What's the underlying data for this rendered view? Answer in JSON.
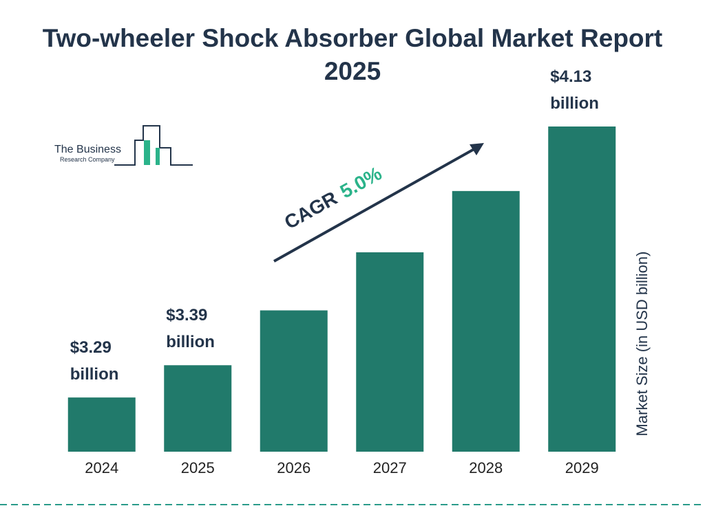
{
  "chart_data": {
    "type": "bar",
    "title": "Two-wheeler Shock Absorber Global Market Report 2025",
    "y_label": "Market Size (in USD billion)",
    "categories": [
      "2024",
      "2025",
      "2026",
      "2027",
      "2028",
      "2029"
    ],
    "values": [
      3.29,
      3.39,
      3.56,
      3.74,
      3.93,
      4.13
    ],
    "value_labels": [
      "$3.29 billion",
      "$3.39 billion",
      null,
      null,
      null,
      "$4.13 billion"
    ],
    "color": "#217a6b",
    "annotation": {
      "label": "CAGR",
      "value": "5.0%"
    }
  },
  "logo": {
    "line1": "The Business",
    "line2": "Research Company"
  }
}
